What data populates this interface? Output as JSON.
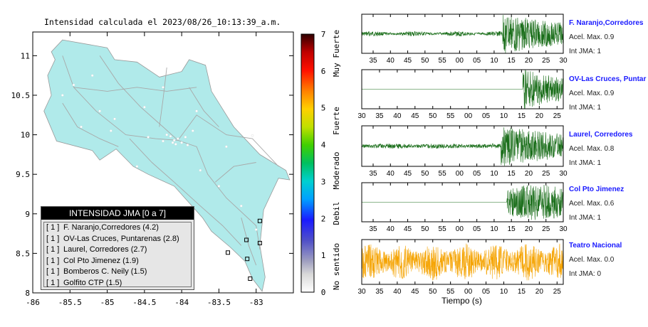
{
  "map": {
    "title": "Intensidad calculada el 2023/08/26_10:13:39_a.m.",
    "lon_ticks": [
      "-86",
      "-85.5",
      "-85",
      "-84.5",
      "-84",
      "-83.5",
      "-83"
    ],
    "lat_ticks": [
      "11",
      "10.5",
      "10",
      "9.5",
      "9",
      "8.5",
      "8"
    ],
    "land_color": "#b0eaea"
  },
  "colorbar": {
    "ticks": [
      "7",
      "6",
      "5",
      "4",
      "3",
      "2",
      "1",
      "0"
    ],
    "labels": [
      "Muy Fuerte",
      "Fuerte",
      "Moderado",
      "Debil",
      "No sentido"
    ]
  },
  "legend": {
    "title": "INTENSIDAD JMA [0 a 7]",
    "items": [
      {
        "tag": "[ 1 ]",
        "text": "F. Naranjo,Corredores (4.2)"
      },
      {
        "tag": "[ 1 ]",
        "text": "OV-Las Cruces, Puntarenas (2.8)"
      },
      {
        "tag": "[ 1 ]",
        "text": "Laurel, Corredores (2.7)"
      },
      {
        "tag": "[ 1 ]",
        "text": "Col Pto Jimenez (1.9)"
      },
      {
        "tag": "[ 1 ]",
        "text": "Bomberos C. Neily (1.5)"
      },
      {
        "tag": "[ 1 ]",
        "text": "Golfito CTP (1.5)"
      }
    ]
  },
  "stations": [
    {
      "name": "F. Naranjo,Corredores",
      "acel": "Acel. Max. 0.9",
      "int": "Int JMA: 1",
      "color": "#1a6e1a",
      "ticks": [
        "35",
        "40",
        "45",
        "50",
        "55",
        "00",
        "05",
        "10",
        "15",
        "20",
        "25",
        "30"
      ]
    },
    {
      "name": "OV-Las Cruces, Puntar",
      "acel": "Acel. Max. 0.9",
      "int": "Int JMA: 1",
      "color": "#1a6e1a",
      "ticks": [
        "30",
        "35",
        "40",
        "45",
        "50",
        "55",
        "00",
        "05",
        "10",
        "15",
        "20",
        "25"
      ]
    },
    {
      "name": "Laurel, Corredores",
      "acel": "Acel. Max. 0.8",
      "int": "Int JMA: 1",
      "color": "#1a6e1a",
      "ticks": [
        "35",
        "40",
        "45",
        "50",
        "55",
        "00",
        "05",
        "10",
        "15",
        "20",
        "25",
        "30"
      ]
    },
    {
      "name": "Col Pto Jimenez",
      "acel": "Acel. Max. 0.6",
      "int": "Int JMA: 1",
      "color": "#1a6e1a",
      "ticks": [
        "35",
        "40",
        "45",
        "50",
        "55",
        "00",
        "05",
        "10",
        "15",
        "20",
        "25",
        "30"
      ]
    },
    {
      "name": "Teatro Nacional",
      "acel": "Acel. Max. 0.0",
      "int": "Int JMA: 0",
      "color": "#f5a300",
      "ticks": [
        "30",
        "35",
        "40",
        "45",
        "50",
        "55",
        "00",
        "05",
        "10",
        "15",
        "20",
        "25"
      ]
    }
  ],
  "wave_xlabel": "Tiempo (s)"
}
